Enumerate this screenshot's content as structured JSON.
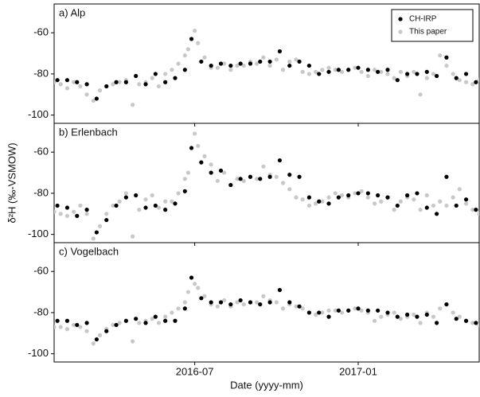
{
  "chart_data": [
    {
      "type": "scatter",
      "title": "a) Alp",
      "legend": "upper right",
      "xlim": [
        2016.07,
        2017.37
      ],
      "ylim": [
        -104,
        -46
      ],
      "yticks": [
        -60,
        -80,
        -100
      ],
      "series": [
        {
          "name": "This paper",
          "color": "#c8c8c8",
          "x": [
            2016.07,
            2016.09,
            2016.11,
            2016.13,
            2016.15,
            2016.17,
            2016.19,
            2016.21,
            2016.23,
            2016.25,
            2016.27,
            2016.29,
            2016.31,
            2016.33,
            2016.35,
            2016.37,
            2016.39,
            2016.41,
            2016.43,
            2016.45,
            2016.47,
            2016.48,
            2016.5,
            2016.51,
            2016.53,
            2016.55,
            2016.57,
            2016.59,
            2016.61,
            2016.63,
            2016.65,
            2016.67,
            2016.69,
            2016.71,
            2016.73,
            2016.75,
            2016.77,
            2016.79,
            2016.81,
            2016.83,
            2016.85,
            2016.87,
            2016.89,
            2016.91,
            2016.93,
            2016.95,
            2016.97,
            2016.99,
            2017.01,
            2017.03,
            2017.05,
            2017.07,
            2017.09,
            2017.11,
            2017.13,
            2017.15,
            2017.17,
            2017.19,
            2017.21,
            2017.23,
            2017.25,
            2017.27,
            2017.29,
            2017.31,
            2017.33,
            2017.35,
            2017.37
          ],
          "values": [
            -84,
            -85,
            -87,
            -84,
            -86,
            -90,
            -93,
            -88,
            -86,
            -85,
            -84,
            -83,
            -95,
            -85,
            -84,
            -82,
            -86,
            -80,
            -78,
            -75,
            -71,
            -68,
            -59,
            -65,
            -72,
            -77,
            -77,
            -75,
            -78,
            -76,
            -76,
            -74,
            -75,
            -72,
            -76,
            -73,
            -78,
            -74,
            -73,
            -79,
            -80,
            -79,
            -78,
            -77,
            -78,
            -79,
            -78,
            -77,
            -79,
            -81,
            -78,
            -79,
            -80,
            -82,
            -79,
            -81,
            -79,
            -90,
            -82,
            -80,
            -71,
            -76,
            -80,
            -83,
            -84,
            -85,
            -83
          ]
        },
        {
          "name": "CH-IRP",
          "color": "#000000",
          "x": [
            2016.08,
            2016.11,
            2016.14,
            2016.17,
            2016.2,
            2016.23,
            2016.26,
            2016.29,
            2016.32,
            2016.35,
            2016.38,
            2016.41,
            2016.44,
            2016.47,
            2016.49,
            2016.52,
            2016.55,
            2016.58,
            2016.61,
            2016.64,
            2016.67,
            2016.7,
            2016.73,
            2016.76,
            2016.79,
            2016.82,
            2016.85,
            2016.88,
            2016.91,
            2016.94,
            2016.97,
            2017.0,
            2017.03,
            2017.06,
            2017.09,
            2017.12,
            2017.15,
            2017.18,
            2017.21,
            2017.24,
            2017.27,
            2017.3,
            2017.33,
            2017.36
          ],
          "values": [
            -83,
            -83,
            -84,
            -85,
            -92,
            -86,
            -84,
            -84,
            -81,
            -85,
            -80,
            -84,
            -82,
            -78,
            -63,
            -74,
            -76,
            -75,
            -76,
            -75,
            -75,
            -74,
            -74,
            -69,
            -76,
            -74,
            -76,
            -80,
            -79,
            -78,
            -78,
            -77,
            -78,
            -79,
            -78,
            -83,
            -80,
            -80,
            -79,
            -81,
            -72,
            -82,
            -80,
            -84
          ]
        }
      ]
    },
    {
      "type": "scatter",
      "title": "b) Erlenbach",
      "y_label": "δ²H (‰-VSMOW)",
      "xlim": [
        2016.07,
        2017.37
      ],
      "ylim": [
        -104,
        -46
      ],
      "yticks": [
        -60,
        -80,
        -100
      ],
      "series": [
        {
          "color": "#c8c8c8",
          "x": [
            2016.07,
            2016.09,
            2016.11,
            2016.13,
            2016.15,
            2016.17,
            2016.19,
            2016.21,
            2016.23,
            2016.25,
            2016.27,
            2016.29,
            2016.31,
            2016.33,
            2016.35,
            2016.37,
            2016.39,
            2016.41,
            2016.43,
            2016.45,
            2016.47,
            2016.48,
            2016.5,
            2016.51,
            2016.53,
            2016.55,
            2016.57,
            2016.59,
            2016.61,
            2016.63,
            2016.65,
            2016.67,
            2016.69,
            2016.71,
            2016.73,
            2016.75,
            2016.77,
            2016.79,
            2016.81,
            2016.83,
            2016.85,
            2016.87,
            2016.89,
            2016.91,
            2016.93,
            2016.95,
            2016.97,
            2016.99,
            2017.01,
            2017.03,
            2017.05,
            2017.07,
            2017.09,
            2017.11,
            2017.13,
            2017.15,
            2017.17,
            2017.19,
            2017.21,
            2017.23,
            2017.25,
            2017.27,
            2017.29,
            2017.31,
            2017.33,
            2017.35,
            2017.37
          ],
          "values": [
            -89,
            -90,
            -91,
            -89,
            -86,
            -90,
            -102,
            -96,
            -90,
            -86,
            -84,
            -80,
            -101,
            -88,
            -83,
            -81,
            -87,
            -84,
            -84,
            -80,
            -73,
            -70,
            -51,
            -57,
            -62,
            -66,
            -74,
            -70,
            -76,
            -73,
            -74,
            -72,
            -73,
            -67,
            -71,
            -72,
            -75,
            -78,
            -82,
            -83,
            -86,
            -85,
            -84,
            -82,
            -80,
            -81,
            -82,
            -80,
            -79,
            -82,
            -85,
            -84,
            -82,
            -88,
            -84,
            -82,
            -83,
            -88,
            -81,
            -86,
            -84,
            -86,
            -82,
            -78,
            -85,
            -88,
            -90
          ]
        },
        {
          "color": "#000000",
          "x": [
            2016.08,
            2016.11,
            2016.14,
            2016.17,
            2016.2,
            2016.23,
            2016.26,
            2016.29,
            2016.32,
            2016.35,
            2016.38,
            2016.41,
            2016.44,
            2016.47,
            2016.49,
            2016.52,
            2016.55,
            2016.58,
            2016.61,
            2016.64,
            2016.67,
            2016.7,
            2016.73,
            2016.76,
            2016.79,
            2016.82,
            2016.85,
            2016.88,
            2016.91,
            2016.94,
            2016.97,
            2017.0,
            2017.03,
            2017.06,
            2017.09,
            2017.12,
            2017.15,
            2017.18,
            2017.21,
            2017.24,
            2017.27,
            2017.3,
            2017.33,
            2017.36
          ],
          "values": [
            -86,
            -87,
            -91,
            -88,
            -99,
            -93,
            -86,
            -82,
            -81,
            -87,
            -86,
            -88,
            -85,
            -79,
            -58,
            -65,
            -70,
            -69,
            -76,
            -73,
            -72,
            -73,
            -72,
            -64,
            -71,
            -72,
            -82,
            -84,
            -85,
            -82,
            -81,
            -80,
            -80,
            -81,
            -82,
            -86,
            -81,
            -80,
            -87,
            -90,
            -72,
            -86,
            -83,
            -88
          ]
        }
      ]
    },
    {
      "type": "scatter",
      "title": "c) Vogelbach",
      "x_label": "Date (yyyy-mm)",
      "xlim": [
        2016.07,
        2017.37
      ],
      "ylim": [
        -104,
        -46
      ],
      "yticks": [
        -60,
        -80,
        -100
      ],
      "xticks": [
        {
          "value": 2016.5,
          "label": "2016-07"
        },
        {
          "value": 2017.0,
          "label": "2017-01"
        }
      ],
      "series": [
        {
          "color": "#c8c8c8",
          "x": [
            2016.07,
            2016.09,
            2016.11,
            2016.13,
            2016.15,
            2016.17,
            2016.19,
            2016.21,
            2016.23,
            2016.25,
            2016.27,
            2016.29,
            2016.31,
            2016.33,
            2016.35,
            2016.37,
            2016.39,
            2016.41,
            2016.43,
            2016.45,
            2016.47,
            2016.48,
            2016.5,
            2016.51,
            2016.53,
            2016.55,
            2016.57,
            2016.59,
            2016.61,
            2016.63,
            2016.65,
            2016.67,
            2016.69,
            2016.71,
            2016.73,
            2016.75,
            2016.77,
            2016.79,
            2016.81,
            2016.83,
            2016.85,
            2016.87,
            2016.89,
            2016.91,
            2016.93,
            2016.95,
            2016.97,
            2016.99,
            2017.01,
            2017.03,
            2017.05,
            2017.07,
            2017.09,
            2017.11,
            2017.13,
            2017.15,
            2017.17,
            2017.19,
            2017.21,
            2017.23,
            2017.25,
            2017.27,
            2017.29,
            2017.31,
            2017.33,
            2017.35,
            2017.37
          ],
          "values": [
            -87,
            -87,
            -88,
            -86,
            -87,
            -89,
            -95,
            -91,
            -88,
            -86,
            -85,
            -84,
            -94,
            -85,
            -84,
            -83,
            -85,
            -82,
            -80,
            -78,
            -75,
            -70,
            -66,
            -68,
            -72,
            -76,
            -77,
            -74,
            -77,
            -75,
            -76,
            -75,
            -75,
            -72,
            -74,
            -75,
            -78,
            -76,
            -77,
            -78,
            -80,
            -81,
            -80,
            -79,
            -79,
            -80,
            -79,
            -78,
            -79,
            -80,
            -84,
            -82,
            -81,
            -80,
            -83,
            -82,
            -81,
            -85,
            -80,
            -82,
            -78,
            -76,
            -80,
            -82,
            -84,
            -85,
            -86
          ]
        },
        {
          "color": "#000000",
          "x": [
            2016.08,
            2016.11,
            2016.14,
            2016.17,
            2016.2,
            2016.23,
            2016.26,
            2016.29,
            2016.32,
            2016.35,
            2016.38,
            2016.41,
            2016.44,
            2016.47,
            2016.49,
            2016.52,
            2016.55,
            2016.58,
            2016.61,
            2016.64,
            2016.67,
            2016.7,
            2016.73,
            2016.76,
            2016.79,
            2016.82,
            2016.85,
            2016.88,
            2016.91,
            2016.94,
            2016.97,
            2017.0,
            2017.03,
            2017.06,
            2017.09,
            2017.12,
            2017.15,
            2017.18,
            2017.21,
            2017.24,
            2017.27,
            2017.3,
            2017.33,
            2017.36
          ],
          "values": [
            -84,
            -84,
            -86,
            -85,
            -93,
            -89,
            -86,
            -84,
            -83,
            -85,
            -82,
            -84,
            -84,
            -78,
            -63,
            -73,
            -75,
            -75,
            -76,
            -74,
            -75,
            -76,
            -75,
            -69,
            -75,
            -77,
            -80,
            -80,
            -82,
            -79,
            -79,
            -78,
            -79,
            -79,
            -80,
            -82,
            -81,
            -82,
            -81,
            -85,
            -76,
            -83,
            -84,
            -85
          ]
        }
      ]
    }
  ]
}
